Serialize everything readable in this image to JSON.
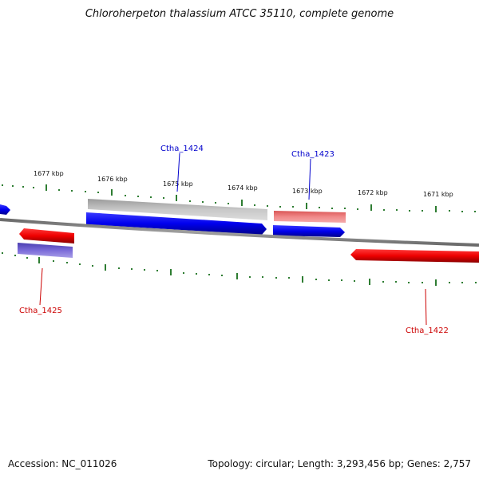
{
  "header": {
    "title": "Chloroherpeton thalassium ATCC 35110, complete genome"
  },
  "footer": {
    "accession": "Accession: NC_011026",
    "info": "Topology: circular; Length: 3,293,456 bp; Genes: 2,757"
  },
  "map": {
    "kbp_labels": [
      "1677 kbp",
      "1676 kbp",
      "1675 kbp",
      "1674 kbp",
      "1673 kbp",
      "1672 kbp",
      "1671 kbp"
    ],
    "genes": [
      {
        "name": "Ctha_1424",
        "strand": "forward",
        "color": "#0000cc"
      },
      {
        "name": "Ctha_1423",
        "strand": "forward",
        "color": "#0000cc"
      },
      {
        "name": "Ctha_1425",
        "strand": "reverse",
        "color": "#cc0000"
      },
      {
        "name": "Ctha_1422",
        "strand": "reverse",
        "color": "#cc0000"
      }
    ],
    "colors": {
      "forward": "#0000ff",
      "reverse": "#ff0000",
      "grey_feature": "#bdbdbd",
      "pink_feature": "#e87a7a",
      "purple_feature": "#6a5acd",
      "backbone": "#8c8c8c",
      "ticks": "#2e7d32"
    }
  }
}
